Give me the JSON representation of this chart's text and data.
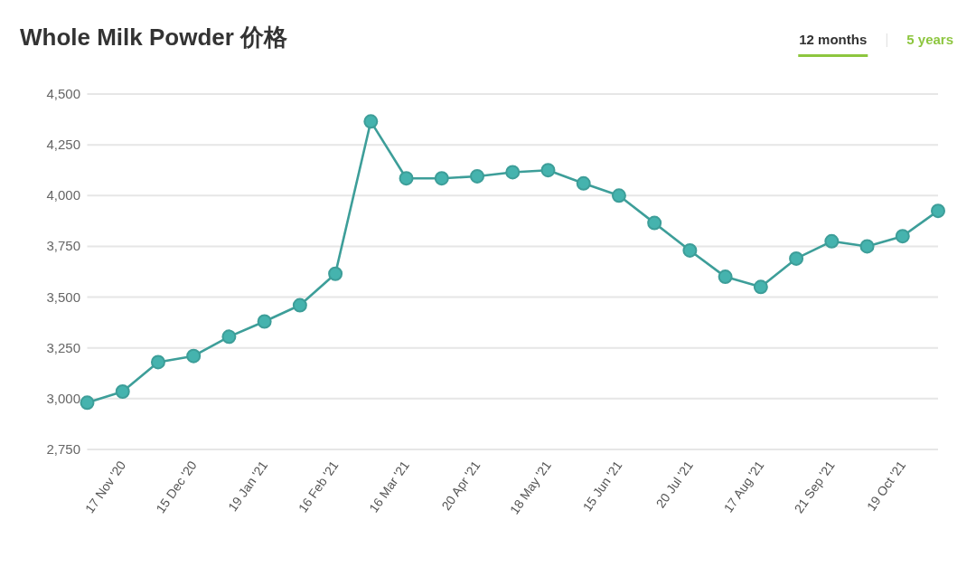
{
  "chart_data": {
    "type": "line",
    "title": "Whole Milk Powder 价格",
    "categories": [
      null,
      "17 Nov '20",
      null,
      "15 Dec '20",
      null,
      "19 Jan '21",
      null,
      "16 Feb '21",
      null,
      "16 Mar '21",
      null,
      "20 Apr '21",
      null,
      "18 May '21",
      null,
      "15 Jun '21",
      null,
      "20 Jul '21",
      null,
      "17 Aug '21",
      null,
      "21 Sep '21",
      null,
      "19 Oct '21",
      null
    ],
    "series": [
      {
        "color": "#45b3ae",
        "values": [
          2980,
          3035,
          3180,
          3210,
          3305,
          3380,
          3460,
          3615,
          4365,
          4085,
          4085,
          4095,
          4115,
          4125,
          4060,
          4000,
          3865,
          3730,
          3600,
          3550,
          3690,
          3775,
          3750,
          3800,
          3925
        ]
      }
    ],
    "ylim": [
      2750,
      4500
    ],
    "yticks": [
      {
        "value": 2750,
        "label": "2,750"
      },
      {
        "value": 3000,
        "label": "3,000"
      },
      {
        "value": 3250,
        "label": "3,250"
      },
      {
        "value": 3500,
        "label": "3,500"
      },
      {
        "value": 3750,
        "label": "3,750"
      },
      {
        "value": 4000,
        "label": "4,000"
      },
      {
        "value": 4250,
        "label": "4,250"
      },
      {
        "value": 4500,
        "label": "4,500"
      }
    ],
    "grid": "y",
    "marker": "circle",
    "line_style": "solid",
    "annotations": [
      "12 months",
      "5 years"
    ]
  }
}
